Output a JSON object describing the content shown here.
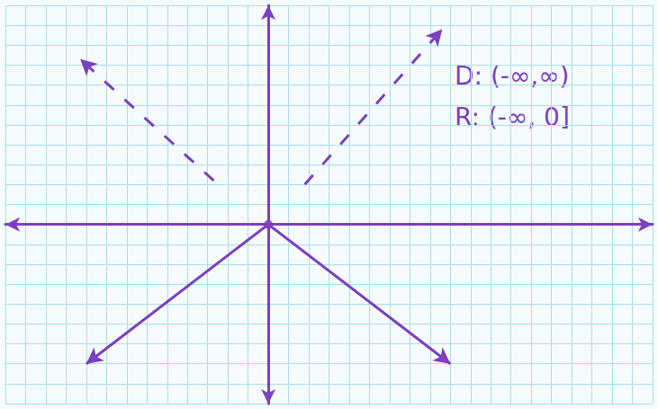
{
  "chart_data": {
    "type": "line",
    "annotations": [
      "D: (-∞,∞)",
      "R: (-∞, 0]"
    ],
    "xlim": [
      -13,
      19
    ],
    "ylim": [
      -9,
      11
    ],
    "xticks": [
      -13,
      -12,
      -11,
      -10,
      -9,
      -8,
      -7,
      -6,
      -5,
      -4,
      -3,
      -2,
      -1,
      0,
      1,
      2,
      3,
      4,
      5,
      6,
      7,
      8,
      9,
      10,
      11,
      12,
      13,
      14,
      15,
      16,
      17,
      18,
      19
    ],
    "yticks": [
      -9,
      -8,
      -7,
      -6,
      -5,
      -4,
      -3,
      -2,
      -1,
      0,
      1,
      2,
      3,
      4,
      5,
      6,
      7,
      8,
      9,
      10,
      11
    ],
    "grid": true,
    "tick_labels": false,
    "series": [
      {
        "x": [
          -9,
          0,
          9
        ],
        "values": [
          -7,
          0,
          -7
        ],
        "color": "#7b3fc0",
        "line_style": "solid",
        "marker": "arrow"
      },
      {
        "x": [
          -2.7,
          -9.3
        ],
        "values": [
          2.2,
          8.3
        ],
        "color": "#7b3fc0",
        "line_style": "dashed",
        "marker": "arrow"
      },
      {
        "x": [
          1.8,
          8.6
        ],
        "values": [
          2.0,
          9.8
        ],
        "color": "#7b3fc0",
        "line_style": "dashed",
        "marker": "arrow"
      }
    ]
  }
}
